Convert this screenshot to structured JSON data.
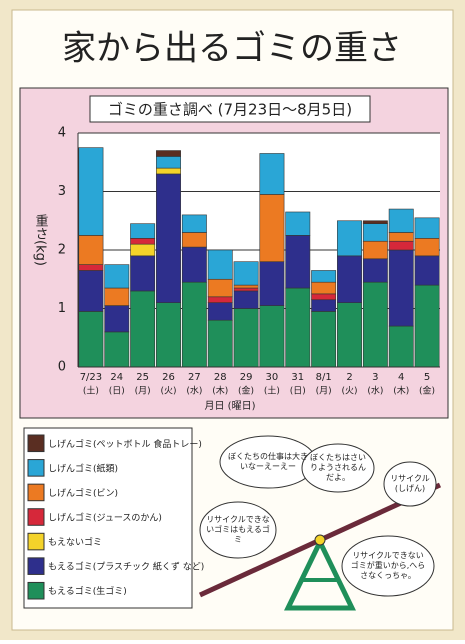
{
  "poster_title": "家から出るゴミの重さ",
  "chart_data": {
    "type": "bar",
    "stacked": true,
    "title": "ゴミの重さ調べ (7月23日～8月5日)",
    "y_label": "重さ(kg)",
    "x_label": "月日 (曜日)",
    "categories": [
      "7/23",
      "24",
      "25",
      "26",
      "27",
      "28",
      "29",
      "30",
      "31",
      "8/1",
      "2",
      "3",
      "4",
      "5"
    ],
    "weekdays": [
      "(土)",
      "(日)",
      "(月)",
      "(火)",
      "(水)",
      "(木)",
      "(金)",
      "(土)",
      "(日)",
      "(月)",
      "(火)",
      "(水)",
      "(木)",
      "(金)"
    ],
    "ylim": [
      0,
      4
    ],
    "yticks": [
      0,
      1,
      2,
      3,
      4
    ],
    "grid": true,
    "series": [
      {
        "name": "もえるゴミ(生ゴミ)",
        "color": "#1f8f5a",
        "values": [
          0.95,
          0.6,
          1.3,
          1.1,
          1.45,
          0.8,
          1.0,
          1.05,
          1.35,
          0.95,
          1.1,
          1.45,
          0.7,
          1.4
        ]
      },
      {
        "name": "もえるゴミ(プラスチック 紙くず など)",
        "color": "#2e2f8c",
        "values": [
          0.7,
          0.45,
          0.6,
          2.2,
          0.6,
          0.3,
          0.3,
          0.75,
          0.9,
          0.2,
          0.8,
          0.4,
          1.3,
          0.5
        ]
      },
      {
        "name": "もえないゴミ",
        "color": "#f4d32a",
        "values": [
          0,
          0,
          0.2,
          0.1,
          0,
          0,
          0,
          0,
          0,
          0,
          0,
          0,
          0,
          0
        ]
      },
      {
        "name": "しげんゴミ(ジュースのかん)",
        "color": "#d6283a",
        "values": [
          0.1,
          0,
          0.1,
          0,
          0,
          0.1,
          0.05,
          0,
          0,
          0.1,
          0,
          0,
          0.15,
          0
        ]
      },
      {
        "name": "しげんゴミ(ビン)",
        "color": "#ec7a22",
        "values": [
          0.5,
          0.3,
          0,
          0,
          0.25,
          0.3,
          0.05,
          1.15,
          0,
          0.2,
          0,
          0.3,
          0.15,
          0.3
        ]
      },
      {
        "name": "しげんゴミ(紙類)",
        "color": "#2aa6d6",
        "values": [
          1.5,
          0.4,
          0.25,
          0.2,
          0.3,
          0.5,
          0.4,
          0.7,
          0.4,
          0.2,
          0.6,
          0.3,
          0.4,
          0.35
        ]
      },
      {
        "name": "しげんゴミ(ペットボトル 食品トレー)",
        "color": "#5a2e22",
        "values": [
          0,
          0,
          0,
          0.1,
          0,
          0,
          0,
          0,
          0,
          0,
          0,
          0.05,
          0,
          0
        ]
      }
    ]
  },
  "bubbles": [
    "ぼくたちの仕事は大きいなーえーえー",
    "ぼくたちはさいりようされるんだよ。",
    "リサイクル (しげん)",
    "リサイクルできないゴミはもえるゴミ",
    "リサイクルできないゴミが重いから,へらさなくっちゃ。"
  ]
}
